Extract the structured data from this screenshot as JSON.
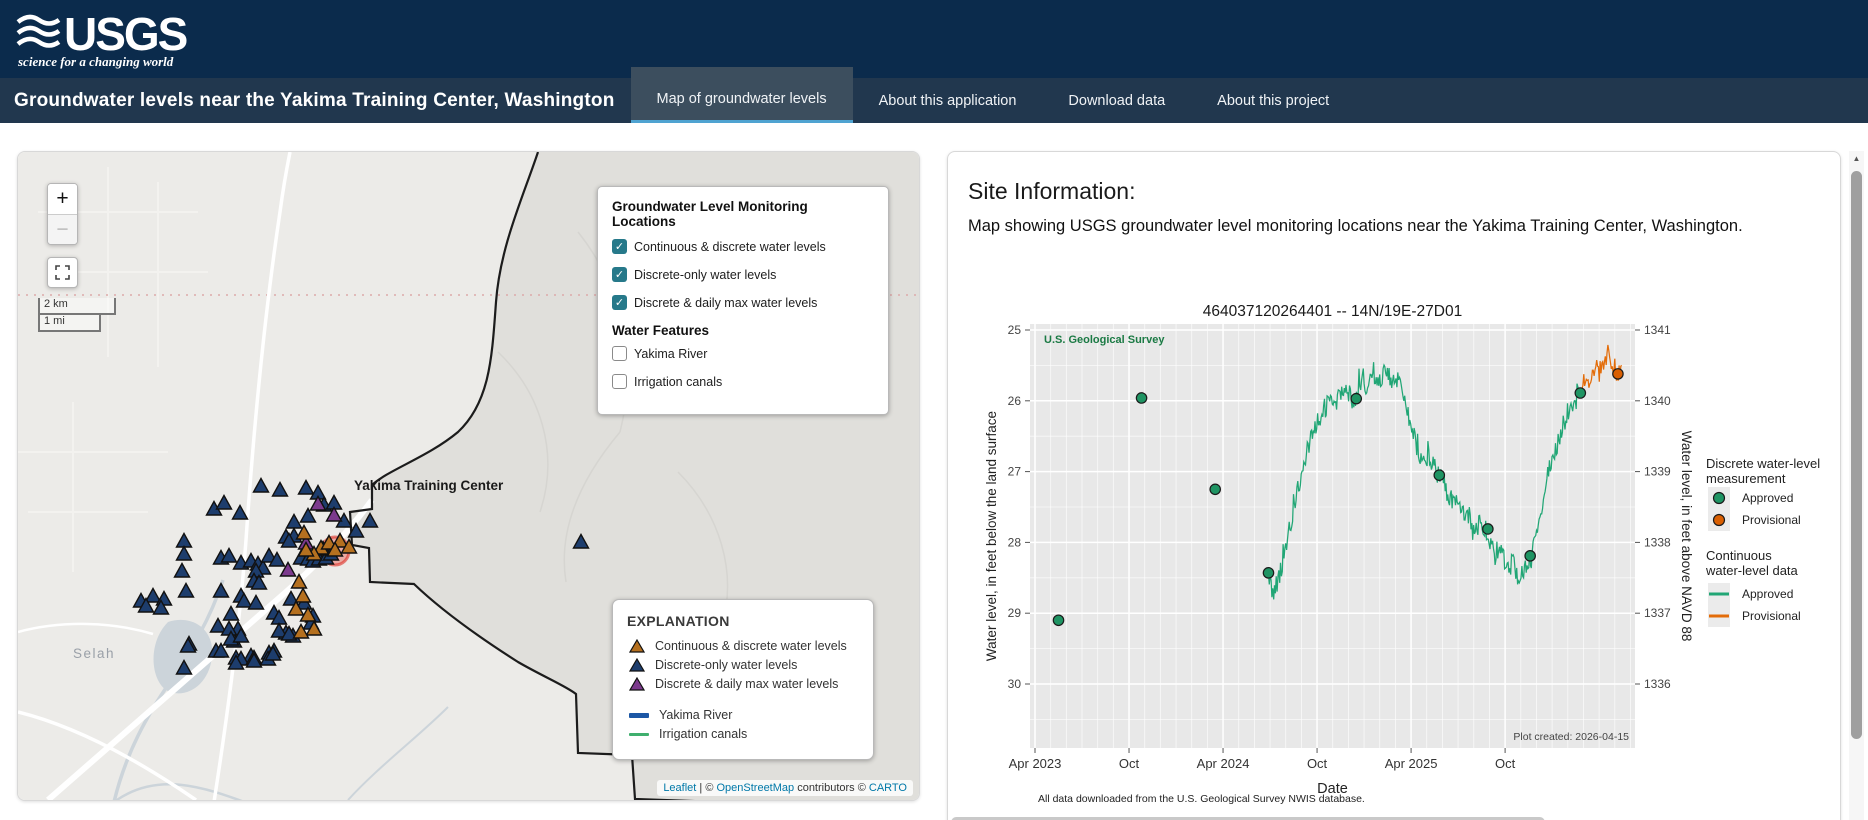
{
  "header": {
    "logo_text": "USGS",
    "logo_tagline": "science for a changing world"
  },
  "navbar": {
    "title": "Groundwater levels near the Yakima Training Center, Washington",
    "tabs": [
      {
        "label": "Map of groundwater levels",
        "active": true
      },
      {
        "label": "About this application",
        "active": false
      },
      {
        "label": "Download data",
        "active": false
      },
      {
        "label": "About this project",
        "active": false
      }
    ]
  },
  "map": {
    "layer_panel": {
      "title": "Groundwater Level Monitoring Locations",
      "checkboxes": [
        {
          "label": "Continuous & discrete water levels",
          "checked": true
        },
        {
          "label": "Discrete-only water levels",
          "checked": true
        },
        {
          "label": "Discrete & daily max water levels",
          "checked": true
        }
      ],
      "subtitle": "Water Features",
      "water_checkboxes": [
        {
          "label": "Yakima River",
          "checked": false
        },
        {
          "label": "Irrigation canals",
          "checked": false
        }
      ]
    },
    "explanation": {
      "title": "EXPLANATION",
      "marker_items": [
        {
          "label": "Continuous & discrete water levels",
          "color": "#b5701f"
        },
        {
          "label": "Discrete-only water levels",
          "color": "#1d3d6d"
        },
        {
          "label": "Discrete & daily max water levels",
          "color": "#7c3a8d"
        }
      ],
      "line_items": [
        {
          "label": "Yakima River",
          "color": "#1c57a5",
          "thickness": 5
        },
        {
          "label": "Irrigation canals",
          "color": "#3faf6e",
          "thickness": 3
        }
      ]
    },
    "labels": {
      "training_center": "Yakima Training Center",
      "town": "Selah"
    },
    "scale": {
      "km": "2 km",
      "mi": "1 mi"
    },
    "zoom_in": "+",
    "zoom_out": "−",
    "attribution": {
      "leaflet": "Leaflet",
      "sep1": " | © ",
      "osm": "OpenStreetMap",
      "sep2": " contributors © ",
      "carto": "CARTO"
    },
    "marker_colors": {
      "navy": "#1d3d6d",
      "orange": "#b5701f",
      "purple": "#7c3a8d"
    },
    "markers": {
      "navy": [
        [
          196,
          357
        ],
        [
          206,
          351
        ],
        [
          222,
          361
        ],
        [
          243,
          334
        ],
        [
          262,
          338
        ],
        [
          288,
          336
        ],
        [
          300,
          341
        ],
        [
          306,
          353
        ],
        [
          316,
          351
        ],
        [
          276,
          370
        ],
        [
          290,
          364
        ],
        [
          326,
          369
        ],
        [
          338,
          379
        ],
        [
          352,
          369
        ],
        [
          268,
          385
        ],
        [
          276,
          384
        ],
        [
          166,
          389
        ],
        [
          166,
          402
        ],
        [
          164,
          419
        ],
        [
          203,
          406
        ],
        [
          211,
          404
        ],
        [
          223,
          411
        ],
        [
          233,
          409
        ],
        [
          240,
          412
        ],
        [
          245,
          416
        ],
        [
          238,
          419
        ],
        [
          236,
          429
        ],
        [
          241,
          431
        ],
        [
          251,
          404
        ],
        [
          259,
          408
        ],
        [
          271,
          389
        ],
        [
          283,
          406
        ],
        [
          290,
          407
        ],
        [
          295,
          409
        ],
        [
          301,
          407
        ],
        [
          308,
          406
        ],
        [
          313,
          402
        ],
        [
          305,
          397
        ],
        [
          123,
          449
        ],
        [
          135,
          444
        ],
        [
          146,
          447
        ],
        [
          168,
          439
        ],
        [
          203,
          439
        ],
        [
          223,
          444
        ],
        [
          226,
          449
        ],
        [
          238,
          451
        ],
        [
          256,
          461
        ],
        [
          261,
          466
        ],
        [
          273,
          447
        ],
        [
          286,
          451
        ],
        [
          295,
          464
        ],
        [
          213,
          462
        ],
        [
          220,
          477
        ],
        [
          200,
          474
        ],
        [
          216,
          489
        ],
        [
          268,
          481
        ],
        [
          275,
          484
        ],
        [
          211,
          477
        ],
        [
          213,
          487
        ],
        [
          223,
          484
        ],
        [
          171,
          492
        ],
        [
          261,
          479
        ],
        [
          271,
          482
        ],
        [
          293,
          471
        ],
        [
          128,
          454
        ],
        [
          143,
          456
        ],
        [
          170,
          494
        ],
        [
          198,
          499
        ],
        [
          203,
          499
        ],
        [
          218,
          506
        ],
        [
          233,
          504
        ],
        [
          251,
          501
        ],
        [
          256,
          499
        ],
        [
          223,
          507
        ],
        [
          236,
          506
        ],
        [
          250,
          507
        ],
        [
          255,
          502
        ],
        [
          166,
          516
        ],
        [
          218,
          511
        ],
        [
          236,
          509
        ],
        [
          563,
          390
        ]
      ],
      "orange": [
        [
          303,
          396
        ],
        [
          311,
          391
        ],
        [
          322,
          389
        ],
        [
          331,
          395
        ],
        [
          296,
          402
        ],
        [
          288,
          398
        ],
        [
          286,
          381
        ],
        [
          281,
          430
        ],
        [
          285,
          444
        ],
        [
          278,
          457
        ],
        [
          290,
          463
        ],
        [
          296,
          477
        ],
        [
          283,
          480
        ],
        [
          317,
          398
        ]
      ],
      "purple": [
        [
          300,
          352
        ],
        [
          316,
          363
        ],
        [
          270,
          418
        ],
        [
          288,
          391
        ]
      ],
      "selected": [
        317,
        399
      ]
    }
  },
  "site_info": {
    "heading": "Site Information:",
    "description": "Map showing USGS groundwater level monitoring locations near the Yakima Training Center, Washington."
  },
  "chart_data": {
    "type": "line",
    "title": "464037120264401 -- 14N/19E-27D01",
    "watermark": "U.S. Geological Survey",
    "xlabel": "Date",
    "ylabel_left": "Water level, in feet below the land surface",
    "ylabel_right": "Water level, in feet above NAVD 88",
    "note": "All data downloaded from the U.S. Geological Survey NWIS database.",
    "plot_created": "Plot created: 2026-04-15",
    "x_ticks": [
      {
        "m": 3,
        "label": "Apr 2023"
      },
      {
        "m": 9,
        "label": "Oct"
      },
      {
        "m": 15,
        "label": "Apr 2024"
      },
      {
        "m": 21,
        "label": "Oct"
      },
      {
        "m": 27,
        "label": "Apr 2025"
      },
      {
        "m": 33,
        "label": "Oct"
      }
    ],
    "x_range_months": [
      2.7,
      41.3
    ],
    "y_left_ticks": [
      25,
      26,
      27,
      28,
      29,
      30
    ],
    "y_right_ticks": [
      1341,
      1340,
      1339,
      1338,
      1337,
      1336
    ],
    "y_left_range": [
      24.9,
      30.9
    ],
    "series": [
      {
        "name": "Continuous approved",
        "kind": "line",
        "color": "#21a675",
        "anchors": [
          [
            17.9,
            28.43
          ],
          [
            18.2,
            28.75
          ],
          [
            18.6,
            28.5
          ],
          [
            19.0,
            28.1
          ],
          [
            19.5,
            27.5
          ],
          [
            20.0,
            27.0
          ],
          [
            20.5,
            26.6
          ],
          [
            21.0,
            26.3
          ],
          [
            21.4,
            26.15
          ],
          [
            21.8,
            25.95
          ],
          [
            22.2,
            26.1
          ],
          [
            22.6,
            25.8
          ],
          [
            23.0,
            25.9
          ],
          [
            23.4,
            26.0
          ],
          [
            23.8,
            25.7
          ],
          [
            24.2,
            25.85
          ],
          [
            24.6,
            25.6
          ],
          [
            25.0,
            25.75
          ],
          [
            25.4,
            25.55
          ],
          [
            25.8,
            25.7
          ],
          [
            26.2,
            25.65
          ],
          [
            26.6,
            26.0
          ],
          [
            27.0,
            26.35
          ],
          [
            27.4,
            26.7
          ],
          [
            27.8,
            26.85
          ],
          [
            28.2,
            26.75
          ],
          [
            28.6,
            27.0
          ],
          [
            29.0,
            27.1
          ],
          [
            29.4,
            27.45
          ],
          [
            29.8,
            27.3
          ],
          [
            30.2,
            27.65
          ],
          [
            30.6,
            27.55
          ],
          [
            31.0,
            27.9
          ],
          [
            31.5,
            27.7
          ],
          [
            31.9,
            27.85
          ],
          [
            32.3,
            28.2
          ],
          [
            32.7,
            28.05
          ],
          [
            33.1,
            28.4
          ],
          [
            33.5,
            28.3
          ],
          [
            33.9,
            28.55
          ],
          [
            34.3,
            28.3
          ],
          [
            34.6,
            28.2
          ],
          [
            35.0,
            27.9
          ],
          [
            35.4,
            27.4
          ],
          [
            35.8,
            27.0
          ],
          [
            36.2,
            26.7
          ],
          [
            36.6,
            26.4
          ],
          [
            37.0,
            26.15
          ],
          [
            37.4,
            26.0
          ],
          [
            37.8,
            25.9
          ]
        ]
      },
      {
        "name": "Continuous provisional",
        "kind": "line",
        "color": "#e36c09",
        "anchors": [
          [
            37.8,
            25.9
          ],
          [
            38.1,
            25.72
          ],
          [
            38.4,
            25.78
          ],
          [
            38.7,
            25.52
          ],
          [
            39.0,
            25.62
          ],
          [
            39.3,
            25.42
          ],
          [
            39.6,
            25.35
          ],
          [
            39.9,
            25.5
          ],
          [
            40.2,
            25.6
          ],
          [
            40.45,
            25.5
          ]
        ]
      },
      {
        "name": "Discrete approved",
        "kind": "scatter",
        "color": "#1f9463",
        "points": [
          [
            4.5,
            29.1
          ],
          [
            9.8,
            25.96
          ],
          [
            14.5,
            27.25
          ],
          [
            17.9,
            28.43
          ],
          [
            23.5,
            25.97
          ],
          [
            28.8,
            27.05
          ],
          [
            31.9,
            27.81
          ],
          [
            34.6,
            28.19
          ],
          [
            37.8,
            25.89
          ]
        ]
      },
      {
        "name": "Discrete provisional",
        "kind": "scatter",
        "color": "#d95f02",
        "points": [
          [
            40.2,
            25.62
          ]
        ]
      }
    ],
    "legend": {
      "discrete_title_1": "Discrete water-level",
      "discrete_title_2": "measurement",
      "continuous_title_1": "Continuous",
      "continuous_title_2": "water-level data",
      "approved_label": "Approved",
      "provisional_label": "Provisional",
      "approved_color": "#1f9463",
      "provisional_color": "#d95f02",
      "approved_line_color": "#21a675",
      "provisional_line_color": "#e36c09"
    }
  }
}
